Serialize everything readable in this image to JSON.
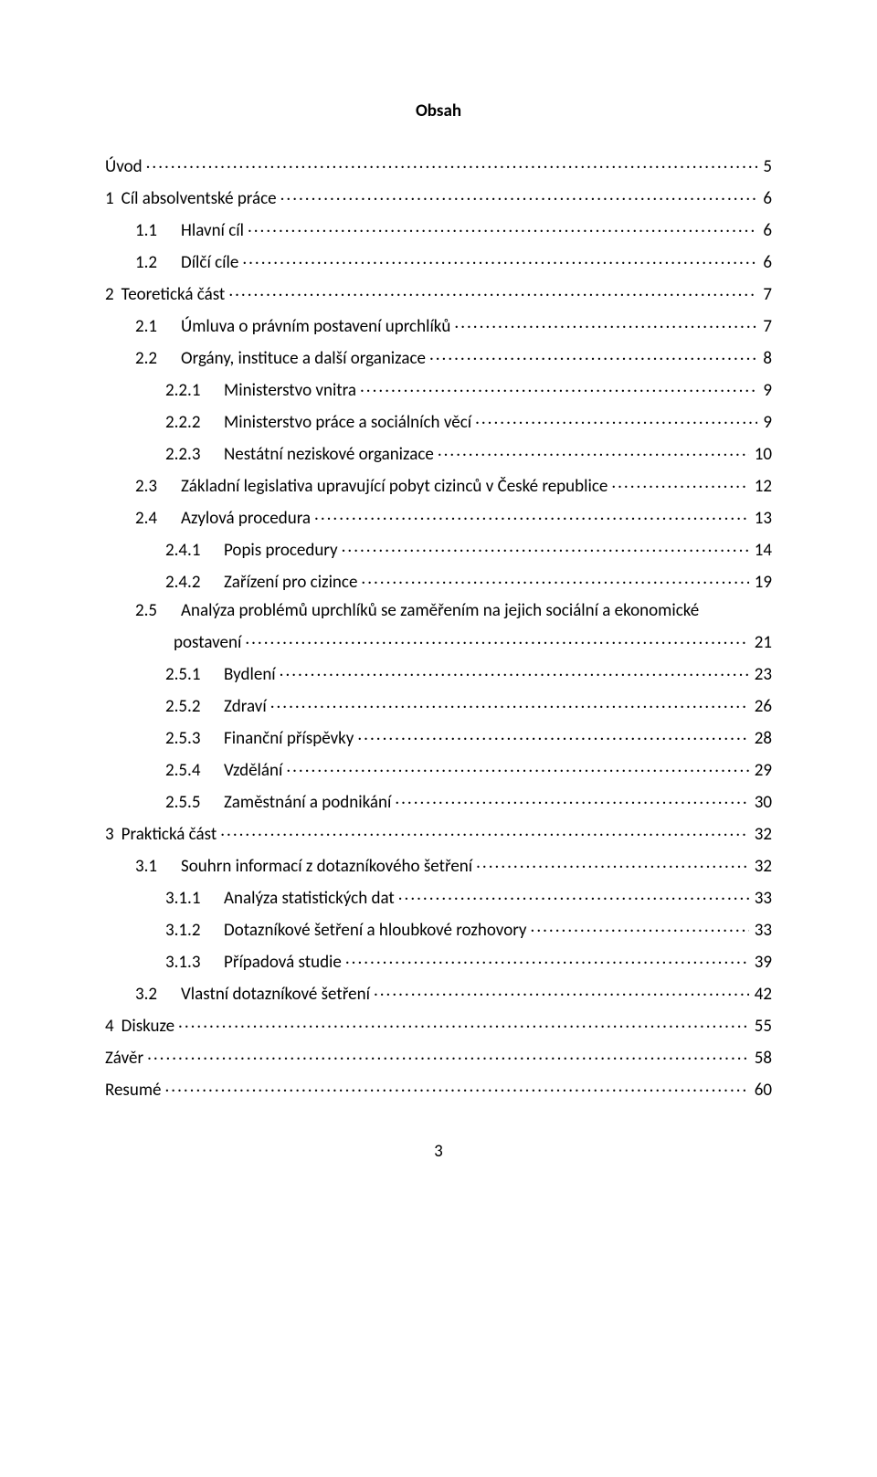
{
  "title": "Obsah",
  "footer_page": "3",
  "entries": [
    {
      "indent": 0,
      "num": "",
      "label": "Úvod",
      "page": "5"
    },
    {
      "indent": 0,
      "num": "1",
      "label": "Cíl absolventské práce",
      "page": "6"
    },
    {
      "indent": 1,
      "num": "1.1",
      "label": "Hlavní cíl",
      "page": "6"
    },
    {
      "indent": 1,
      "num": "1.2",
      "label": "Dílčí cíle",
      "page": "6"
    },
    {
      "indent": 0,
      "num": "2",
      "label": "Teoretická část",
      "page": "7"
    },
    {
      "indent": 1,
      "num": "2.1",
      "label": "Úmluva o právním postavení uprchlíků",
      "page": "7"
    },
    {
      "indent": 1,
      "num": "2.2",
      "label": "Orgány, instituce a další organizace",
      "page": "8"
    },
    {
      "indent": 2,
      "num": "2.2.1",
      "label": "Ministerstvo vnitra",
      "page": "9"
    },
    {
      "indent": 2,
      "num": "2.2.2",
      "label": "Ministerstvo práce a sociálních věcí",
      "page": "9"
    },
    {
      "indent": 2,
      "num": "2.2.3",
      "label": "Nestátní neziskové organizace",
      "page": "10"
    },
    {
      "indent": 1,
      "num": "2.3",
      "label": "Základní legislativa upravující pobyt cizinců v České republice",
      "page": "12"
    },
    {
      "indent": 1,
      "num": "2.4",
      "label": "Azylová procedura",
      "page": "13"
    },
    {
      "indent": 2,
      "num": "2.4.1",
      "label": "Popis procedury",
      "page": "14"
    },
    {
      "indent": 2,
      "num": "2.4.2",
      "label": "Zařízení pro cizince",
      "page": "19"
    },
    {
      "indent": 1,
      "num": "2.5",
      "wrap": true,
      "label1": "Analýza problémů uprchlíků se zaměřením na jejich sociální a ekonomické",
      "label2": "postavení",
      "page": "21"
    },
    {
      "indent": 2,
      "num": "2.5.1",
      "label": "Bydlení",
      "page": "23"
    },
    {
      "indent": 2,
      "num": "2.5.2",
      "label": "Zdraví",
      "page": "26"
    },
    {
      "indent": 2,
      "num": "2.5.3",
      "label": "Finanční příspěvky",
      "page": "28"
    },
    {
      "indent": 2,
      "num": "2.5.4",
      "label": "Vzdělání",
      "page": "29"
    },
    {
      "indent": 2,
      "num": "2.5.5",
      "label": "Zaměstnání a podnikání",
      "page": "30"
    },
    {
      "indent": 0,
      "num": "3",
      "label": "Praktická část",
      "page": "32"
    },
    {
      "indent": 1,
      "num": "3.1",
      "label": "Souhrn informací z dotazníkového šetření",
      "page": "32"
    },
    {
      "indent": 2,
      "num": "3.1.1",
      "label": "Analýza statistických dat",
      "page": "33"
    },
    {
      "indent": 2,
      "num": "3.1.2",
      "label": "Dotazníkové šetření a hloubkové rozhovory",
      "page": "33"
    },
    {
      "indent": 2,
      "num": "3.1.3",
      "label": "Případová studie",
      "page": "39"
    },
    {
      "indent": 1,
      "num": "3.2",
      "label": "Vlastní dotazníkové šetření",
      "page": "42"
    },
    {
      "indent": 0,
      "num": "4",
      "label": "Diskuze",
      "page": "55"
    },
    {
      "indent": 0,
      "num": "",
      "label": "Závěr",
      "page": "58"
    },
    {
      "indent": 0,
      "num": "",
      "label": "Resumé",
      "page": "60"
    }
  ]
}
